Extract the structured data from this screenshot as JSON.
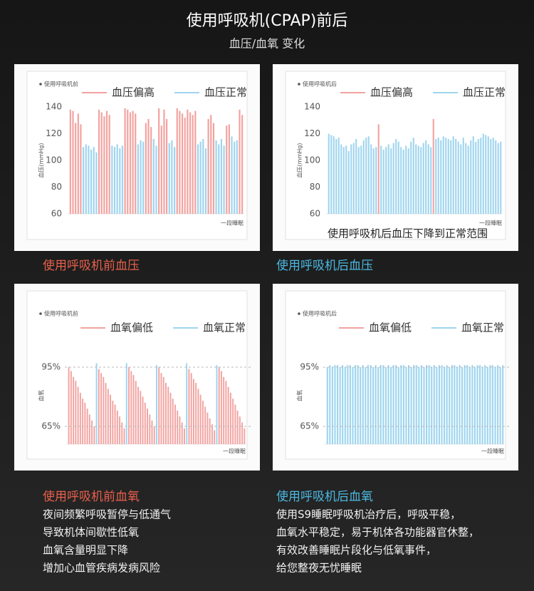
{
  "header": {
    "title": "使用呼吸机(CPAP)前后",
    "subtitle": "血压/血氧 变化"
  },
  "chart_data": [
    {
      "type": "bar",
      "title": "使用呼吸机前",
      "xlabel": "一段睡眠",
      "ylabel": "血压(mmHg)",
      "ylim": [
        60,
        140
      ],
      "yticks": [
        60,
        80,
        100,
        120,
        140
      ],
      "grid": false,
      "series": [
        {
          "name": "血压偏高",
          "color": "#f2a3a0",
          "values": [
            138,
            137,
            128,
            135,
            127,
            null,
            null,
            null,
            null,
            null,
            null,
            138,
            136,
            133,
            137,
            134,
            null,
            null,
            null,
            null,
            null,
            139,
            138,
            136,
            137,
            135,
            null,
            null,
            null,
            128,
            131,
            125,
            null,
            null,
            139,
            126,
            138,
            131,
            null,
            null,
            null,
            139,
            137,
            135,
            132,
            138,
            136,
            134,
            137,
            null,
            null,
            null,
            null,
            131,
            134,
            128,
            null,
            null,
            null,
            null,
            126,
            127,
            null,
            null,
            null,
            138,
            134
          ]
        },
        {
          "name": "血压正常",
          "color": "#9fd5ef",
          "values": [
            null,
            null,
            null,
            null,
            null,
            110,
            112,
            111,
            108,
            110,
            106,
            null,
            null,
            null,
            null,
            null,
            111,
            110,
            112,
            109,
            111,
            null,
            null,
            null,
            null,
            null,
            112,
            115,
            114,
            null,
            null,
            null,
            116,
            111,
            null,
            null,
            null,
            null,
            113,
            115,
            110,
            null,
            null,
            null,
            null,
            null,
            null,
            null,
            null,
            112,
            114,
            116,
            109,
            null,
            null,
            null,
            115,
            112,
            116,
            111,
            null,
            null,
            118,
            114,
            115,
            null,
            null
          ]
        }
      ]
    },
    {
      "type": "bar",
      "title": "使用呼吸机后",
      "xlabel": "一段睡眠",
      "ylabel": "血压(mmHg)",
      "annotation": "使用呼吸机后血压下降到正常范围",
      "ylim": [
        60,
        140
      ],
      "yticks": [
        60,
        80,
        100,
        120,
        140
      ],
      "grid": false,
      "series": [
        {
          "name": "血压偏高",
          "color": "#f2a3a0",
          "values": [
            null,
            null,
            null,
            null,
            null,
            null,
            null,
            null,
            null,
            null,
            null,
            null,
            null,
            null,
            null,
            null,
            null,
            null,
            null,
            null,
            127,
            null,
            null,
            null,
            null,
            null,
            null,
            null,
            null,
            null,
            null,
            null,
            null,
            null,
            null,
            null,
            null,
            null,
            null,
            null,
            null,
            null,
            131,
            null,
            null,
            null,
            null,
            null,
            null,
            null,
            null,
            null,
            null,
            null,
            null,
            null,
            null,
            null,
            null,
            null,
            null,
            null,
            null,
            null,
            null,
            null,
            null,
            null,
            null,
            null
          ]
        },
        {
          "name": "血压正常",
          "color": "#9fd5ef",
          "values": [
            120,
            119,
            118,
            116,
            117,
            112,
            110,
            111,
            107,
            112,
            113,
            116,
            110,
            111,
            115,
            117,
            118,
            112,
            109,
            110,
            null,
            111,
            108,
            110,
            112,
            109,
            113,
            116,
            114,
            110,
            108,
            111,
            109,
            114,
            117,
            112,
            111,
            110,
            113,
            115,
            112,
            110,
            null,
            116,
            117,
            115,
            118,
            117,
            116,
            115,
            118,
            116,
            114,
            112,
            117,
            113,
            111,
            115,
            118,
            114,
            116,
            117,
            120,
            119,
            118,
            116,
            117,
            115,
            113,
            114
          ]
        }
      ]
    },
    {
      "type": "bar",
      "title": "使用呼吸机前",
      "xlabel": "一段睡眠",
      "ylabel": "血氧",
      "ylim": [
        56,
        104
      ],
      "yticks": [
        {
          "value": 65,
          "label": "65%"
        },
        {
          "value": 95,
          "label": "95%"
        }
      ],
      "grid": true,
      "series": [
        {
          "name": "血氧偏低",
          "color": "#f2a3a0",
          "values": [
            95,
            93,
            90,
            88,
            85,
            82,
            79,
            77,
            74,
            71,
            68,
            65,
            null,
            94,
            92,
            90,
            87,
            84,
            81,
            78,
            76,
            73,
            70,
            67,
            64,
            null,
            95,
            93,
            91,
            88,
            85,
            83,
            80,
            77,
            74,
            71,
            68,
            65,
            null,
            95,
            92,
            90,
            87,
            85,
            82,
            79,
            76,
            73,
            70,
            67,
            64,
            null,
            94,
            92,
            89,
            87,
            84,
            81,
            78,
            75,
            72,
            69,
            66,
            63,
            null,
            95,
            93,
            90,
            88,
            85,
            82,
            79,
            76,
            73,
            70,
            67,
            64
          ]
        },
        {
          "name": "血氧正常",
          "color": "#9fd5ef",
          "values": [
            null,
            null,
            null,
            null,
            null,
            null,
            null,
            null,
            null,
            null,
            null,
            null,
            97,
            null,
            null,
            null,
            null,
            null,
            null,
            null,
            null,
            null,
            null,
            null,
            null,
            97,
            null,
            null,
            null,
            null,
            null,
            null,
            null,
            null,
            null,
            null,
            null,
            null,
            96,
            null,
            null,
            null,
            null,
            null,
            null,
            null,
            null,
            null,
            null,
            null,
            null,
            97,
            null,
            null,
            null,
            null,
            null,
            null,
            null,
            null,
            null,
            null,
            null,
            null,
            96,
            null,
            null,
            null,
            null,
            null,
            null,
            null,
            null,
            null,
            null,
            null,
            null
          ]
        }
      ]
    },
    {
      "type": "bar",
      "title": "使用呼吸机后",
      "xlabel": "一段睡眠",
      "ylabel": "血氧",
      "ylim": [
        56,
        104
      ],
      "yticks": [
        {
          "value": 65,
          "label": "65%"
        },
        {
          "value": 95,
          "label": "95%"
        }
      ],
      "grid": true,
      "series": [
        {
          "name": "血氧偏低",
          "color": "#f2a3a0",
          "values": [
            null,
            null,
            null,
            null,
            null,
            null,
            null,
            null,
            null,
            null,
            null,
            null,
            null,
            null,
            null,
            null,
            null,
            null,
            null,
            null,
            null,
            null,
            null,
            null,
            null,
            null,
            null,
            null,
            null,
            null,
            null,
            null,
            null,
            null,
            null,
            null,
            null,
            null,
            null,
            null,
            null,
            null,
            null,
            null,
            null,
            null,
            null,
            null,
            null,
            null,
            null,
            null,
            null,
            null,
            null,
            null,
            null,
            null,
            null,
            null,
            null,
            null,
            null,
            null,
            null,
            null,
            null,
            null,
            null,
            null
          ]
        },
        {
          "name": "血氧正常",
          "color": "#9fd5ef",
          "values": [
            95,
            96,
            95,
            96,
            96,
            95,
            96,
            95,
            96,
            96,
            95,
            96,
            96,
            95,
            96,
            95,
            96,
            96,
            95,
            96,
            95,
            96,
            96,
            95,
            96,
            95,
            96,
            96,
            95,
            96,
            96,
            95,
            96,
            95,
            96,
            96,
            95,
            96,
            95,
            96,
            96,
            95,
            96,
            95,
            96,
            96,
            95,
            96,
            95,
            96,
            96,
            95,
            96,
            95,
            96,
            96,
            95,
            96,
            95,
            96,
            96,
            95,
            96,
            95,
            96,
            96,
            95,
            96,
            95,
            96
          ]
        }
      ]
    }
  ],
  "captions": [
    {
      "title": "使用呼吸机前血压"
    },
    {
      "title": "使用呼吸机后血压"
    },
    {
      "title": "使用呼吸机前血氧",
      "lines": [
        "夜间频繁呼吸暂停与低通气",
        "导致机体间歇性低氧",
        "血氧含量明显下降",
        "增加心血管疾病发病风险"
      ]
    },
    {
      "title": "使用呼吸机后血氧",
      "lines": [
        "使用S9睡眠呼吸机治疗后，呼吸平稳，",
        "血氧水平稳定，易于机体各功能器官休整，",
        "有效改善睡眠片段化与低氧事件，",
        "给您整夜无忧睡眠"
      ]
    }
  ]
}
